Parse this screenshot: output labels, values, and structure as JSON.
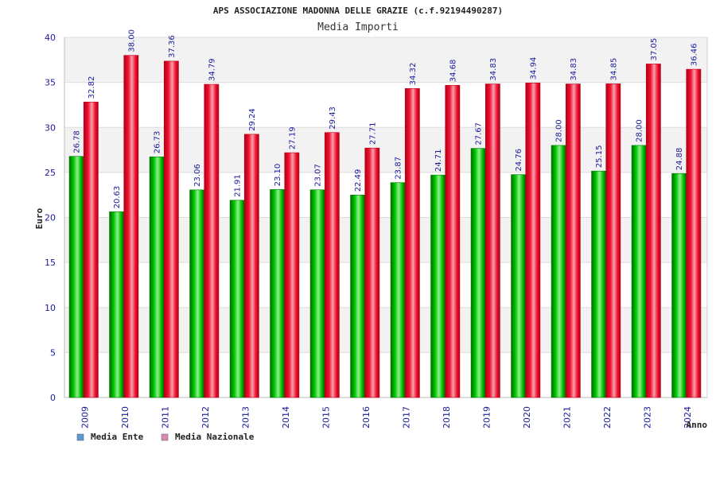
{
  "chart_data": {
    "type": "bar",
    "title": "APS ASSOCIAZIONE MADONNA DELLE GRAZIE (c.f.92194490287)",
    "subtitle": "Media Importi",
    "xlabel": "Anno",
    "ylabel": "Euro",
    "ylim": [
      0,
      40
    ],
    "yticks": [
      0,
      5,
      10,
      15,
      20,
      25,
      30,
      35,
      40
    ],
    "grid": true,
    "legend_position": "bottom-left",
    "categories": [
      "2009",
      "2010",
      "2011",
      "2012",
      "2013",
      "2014",
      "2015",
      "2016",
      "2017",
      "2018",
      "2019",
      "2020",
      "2021",
      "2022",
      "2023",
      "2024"
    ],
    "series": [
      {
        "name": "Media Ente",
        "legend_color": "#5b9bd5",
        "bar_color": "#00b000",
        "values": [
          26.78,
          20.63,
          26.73,
          23.06,
          21.91,
          23.1,
          23.07,
          22.49,
          23.87,
          24.71,
          27.67,
          24.76,
          28.0,
          25.15,
          28.0,
          24.88
        ],
        "labels": [
          "26.78",
          "20.63",
          "26.73",
          "23.06",
          "21.91",
          "23.10",
          "23.07",
          "22.49",
          "23.87",
          "24.71",
          "27.67",
          "24.76",
          "28.00",
          "25.15",
          "28.00",
          "24.88"
        ]
      },
      {
        "name": "Media Nazionale",
        "legend_color": "#d98cb3",
        "bar_color": "#e00020",
        "values": [
          32.82,
          38.0,
          37.36,
          34.79,
          29.24,
          27.19,
          29.43,
          27.71,
          34.32,
          34.68,
          34.83,
          34.94,
          34.83,
          34.85,
          37.05,
          36.46
        ],
        "labels": [
          "32.82",
          "38.00",
          "37.36",
          "34.79",
          "29.24",
          "27.19",
          "29.43",
          "27.71",
          "34.32",
          "34.68",
          "34.83",
          "34.94",
          "34.83",
          "34.85",
          "37.05",
          "36.46"
        ]
      }
    ]
  }
}
